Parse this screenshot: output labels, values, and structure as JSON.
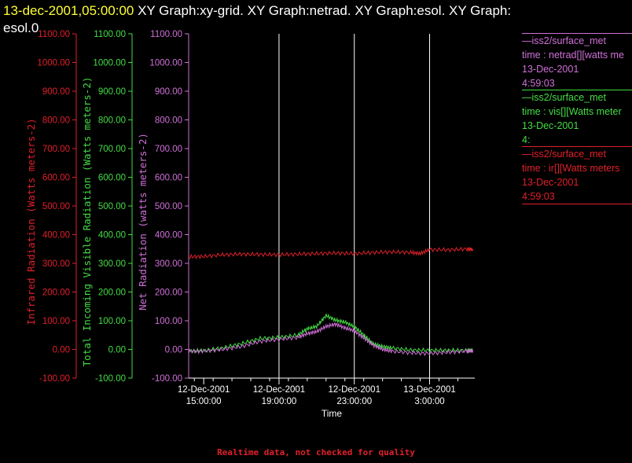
{
  "header": {
    "date_label": "13-dec-2001,05:00:00",
    "graph_titles": " XY Graph:xy-grid.  XY Graph:netrad.  XY Graph:esol.  XY Graph:",
    "graph_titles_cont": "esol.0",
    "date_color": "#ffff33"
  },
  "legend": [
    {
      "lines": [
        "—iss2/surface_met",
        "time : netrad[][watts me",
        "13-Dec-2001",
        "4:59:03"
      ],
      "color": "#d070d8"
    },
    {
      "lines": [
        "—iss2/surface_met",
        "time : vis[][Watts meter",
        "13-Dec-2001",
        "4:"
      ],
      "color": "#44dd44"
    },
    {
      "lines": [
        "—iss2/surface_met",
        "time : ir[][Watts meters",
        "13-Dec-2001",
        "4:59:03"
      ],
      "color": "#e0202a"
    }
  ],
  "footer": "Realtime data, not checked for quality",
  "chart_data": {
    "type": "line",
    "xlabel": "Time",
    "x_ticks": [
      {
        "l1": "12-Dec-2001",
        "l2": "15:00:00",
        "hours": 0
      },
      {
        "l1": "12-Dec-2001",
        "l2": "19:00:00",
        "hours": 4
      },
      {
        "l1": "12-Dec-2001",
        "l2": "23:00:00",
        "hours": 8
      },
      {
        "l1": "13-Dec-2001",
        "l2": "3:00:00",
        "hours": 12
      }
    ],
    "xlim_hours": [
      -0.8,
      14.4
    ],
    "ylim": [
      -100,
      1100
    ],
    "y_ticks": [
      "-100.00",
      "0.00",
      "100.00",
      "200.00",
      "300.00",
      "400.00",
      "500.00",
      "600.00",
      "700.00",
      "800.00",
      "900.00",
      "1000.00",
      "1100.00"
    ],
    "axes": [
      {
        "label": "Infrared Radiation (Watts meters-2)",
        "color": "#e0202a"
      },
      {
        "label": "Total Incoming Visible Radiation (Watts meters-2)",
        "color": "#44dd44"
      },
      {
        "label": "Net Radiation (watts meters-2)",
        "color": "#d070d8"
      }
    ],
    "grid": "vertical",
    "series": [
      {
        "name": "ir",
        "color": "#e0202a",
        "x": [
          -0.8,
          0,
          1,
          2,
          3,
          4,
          5,
          6,
          7,
          8,
          9,
          10,
          11,
          11.5,
          12,
          13,
          14,
          14.3
        ],
        "y": [
          323,
          324,
          330,
          332,
          331,
          330,
          332,
          334,
          336,
          334,
          338,
          340,
          338,
          334,
          348,
          347,
          350,
          349
        ]
      },
      {
        "name": "vis",
        "color": "#44dd44",
        "x": [
          -0.8,
          0,
          1,
          2,
          3,
          4,
          5,
          5.5,
          6,
          6.5,
          7,
          7.5,
          8,
          8.5,
          9,
          9.5,
          10,
          11,
          12,
          13,
          14,
          14.3
        ],
        "y": [
          -5,
          -4,
          5,
          20,
          38,
          42,
          50,
          72,
          80,
          118,
          102,
          95,
          80,
          50,
          20,
          10,
          5,
          -2,
          -3,
          -3,
          -3,
          -2
        ]
      },
      {
        "name": "netrad",
        "color": "#d070d8",
        "x": [
          -0.8,
          0,
          1,
          2,
          3,
          4,
          5,
          5.5,
          6,
          6.5,
          7,
          7.5,
          8,
          8.5,
          9,
          9.5,
          10,
          11,
          12,
          13,
          14,
          14.3
        ],
        "y": [
          -7,
          -6,
          0,
          10,
          28,
          35,
          42,
          55,
          62,
          80,
          88,
          75,
          65,
          40,
          15,
          0,
          -6,
          -12,
          -14,
          -10,
          -6,
          -5
        ]
      }
    ]
  }
}
